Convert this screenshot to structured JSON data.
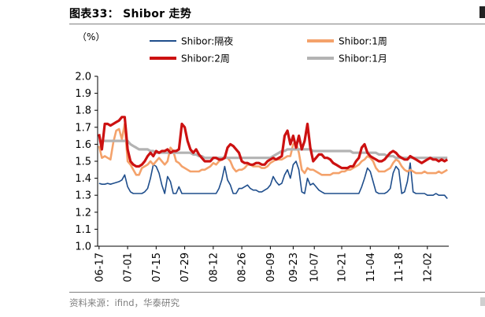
{
  "figure": {
    "title": "图表33： Shibor 走势",
    "source": "资料来源：ifind，华泰研究"
  },
  "colors": {
    "overnight": "#1f4e8c",
    "one_week": "#f4a26b",
    "two_week": "#cc1111",
    "one_month": "#b3b3b3"
  },
  "chart_data": {
    "type": "line",
    "unit_label": "（%）",
    "ylim": [
      1.0,
      2.0
    ],
    "yticks": [
      "2.0",
      "1.9",
      "1.8",
      "1.7",
      "1.6",
      "1.5",
      "1.4",
      "1.3",
      "1.2",
      "1.1",
      "1.0"
    ],
    "xticks": [
      "06-17",
      "07-01",
      "07-15",
      "07-29",
      "08-12",
      "08-26",
      "09-09",
      "09-23",
      "10-07",
      "10-21",
      "11-04",
      "11-18",
      "12-02"
    ],
    "legend_position": "top",
    "x": [
      "06-17",
      "06-18",
      "06-19",
      "06-20",
      "06-21",
      "06-24",
      "06-25",
      "06-26",
      "06-27",
      "06-28",
      "07-01",
      "07-02",
      "07-03",
      "07-04",
      "07-05",
      "07-08",
      "07-09",
      "07-10",
      "07-11",
      "07-12",
      "07-15",
      "07-16",
      "07-17",
      "07-18",
      "07-19",
      "07-22",
      "07-23",
      "07-24",
      "07-25",
      "07-26",
      "07-29",
      "07-30",
      "07-31",
      "08-01",
      "08-02",
      "08-05",
      "08-06",
      "08-07",
      "08-08",
      "08-09",
      "08-12",
      "08-13",
      "08-14",
      "08-15",
      "08-16",
      "08-19",
      "08-20",
      "08-21",
      "08-22",
      "08-23",
      "08-26",
      "08-27",
      "08-28",
      "08-29",
      "08-30",
      "09-02",
      "09-03",
      "09-04",
      "09-05",
      "09-06",
      "09-09",
      "09-10",
      "09-11",
      "09-12",
      "09-13",
      "09-18",
      "09-19",
      "09-20",
      "09-23",
      "09-24",
      "09-25",
      "09-26",
      "09-27",
      "09-29",
      "09-30",
      "10-08",
      "10-09",
      "10-10",
      "10-11",
      "10-12",
      "10-14",
      "10-15",
      "10-16",
      "10-17",
      "10-18",
      "10-21",
      "10-22",
      "10-23",
      "10-24",
      "10-25",
      "10-28",
      "10-29",
      "10-30",
      "10-31",
      "11-01",
      "11-04",
      "11-05",
      "11-06",
      "11-07",
      "11-08",
      "11-11",
      "11-12",
      "11-13",
      "11-14",
      "11-15",
      "11-18",
      "11-19",
      "11-20",
      "11-21",
      "11-22",
      "11-25",
      "11-26",
      "11-27",
      "11-28",
      "11-29",
      "12-02",
      "12-03",
      "12-04",
      "12-05",
      "12-06",
      "12-09",
      "12-10",
      "12-11"
    ],
    "series": [
      {
        "name": "Shibor:隔夜",
        "color_key": "overnight",
        "values": [
          1.37,
          1.365,
          1.365,
          1.37,
          1.365,
          1.37,
          1.375,
          1.38,
          1.39,
          1.42,
          1.35,
          1.32,
          1.31,
          1.31,
          1.31,
          1.31,
          1.32,
          1.34,
          1.4,
          1.48,
          1.47,
          1.43,
          1.36,
          1.31,
          1.41,
          1.38,
          1.31,
          1.31,
          1.35,
          1.31,
          1.31,
          1.31,
          1.31,
          1.31,
          1.31,
          1.31,
          1.31,
          1.31,
          1.31,
          1.31,
          1.31,
          1.31,
          1.34,
          1.39,
          1.47,
          1.39,
          1.36,
          1.31,
          1.31,
          1.34,
          1.34,
          1.35,
          1.36,
          1.34,
          1.33,
          1.33,
          1.32,
          1.32,
          1.33,
          1.34,
          1.36,
          1.41,
          1.38,
          1.36,
          1.37,
          1.42,
          1.45,
          1.4,
          1.48,
          1.5,
          1.45,
          1.32,
          1.31,
          1.4,
          1.36,
          1.37,
          1.35,
          1.33,
          1.32,
          1.31,
          1.31,
          1.31,
          1.31,
          1.31,
          1.31,
          1.31,
          1.31,
          1.31,
          1.31,
          1.31,
          1.31,
          1.31,
          1.35,
          1.4,
          1.46,
          1.44,
          1.38,
          1.32,
          1.31,
          1.31,
          1.31,
          1.32,
          1.34,
          1.43,
          1.47,
          1.45,
          1.31,
          1.32,
          1.38,
          1.49,
          1.32,
          1.31,
          1.31,
          1.31,
          1.31,
          1.3,
          1.3,
          1.3,
          1.31,
          1.3,
          1.3,
          1.3,
          1.28
        ]
      },
      {
        "name": "Shibor:1周",
        "color_key": "one_week",
        "values": [
          1.59,
          1.52,
          1.53,
          1.52,
          1.51,
          1.61,
          1.68,
          1.69,
          1.63,
          1.72,
          1.5,
          1.48,
          1.45,
          1.42,
          1.42,
          1.46,
          1.47,
          1.48,
          1.5,
          1.48,
          1.5,
          1.52,
          1.5,
          1.48,
          1.5,
          1.58,
          1.56,
          1.5,
          1.49,
          1.47,
          1.46,
          1.45,
          1.44,
          1.44,
          1.44,
          1.44,
          1.45,
          1.45,
          1.46,
          1.47,
          1.49,
          1.48,
          1.5,
          1.51,
          1.53,
          1.52,
          1.5,
          1.46,
          1.44,
          1.45,
          1.45,
          1.46,
          1.48,
          1.48,
          1.47,
          1.47,
          1.47,
          1.46,
          1.46,
          1.47,
          1.49,
          1.5,
          1.51,
          1.51,
          1.51,
          1.52,
          1.53,
          1.53,
          1.6,
          1.61,
          1.55,
          1.45,
          1.43,
          1.46,
          1.45,
          1.45,
          1.44,
          1.43,
          1.42,
          1.42,
          1.42,
          1.42,
          1.43,
          1.43,
          1.43,
          1.44,
          1.44,
          1.45,
          1.45,
          1.46,
          1.47,
          1.48,
          1.5,
          1.51,
          1.53,
          1.52,
          1.5,
          1.46,
          1.44,
          1.44,
          1.44,
          1.45,
          1.46,
          1.49,
          1.51,
          1.5,
          1.47,
          1.45,
          1.44,
          1.45,
          1.44,
          1.43,
          1.43,
          1.43,
          1.44,
          1.43,
          1.43,
          1.43,
          1.43,
          1.44,
          1.43,
          1.44,
          1.45
        ]
      },
      {
        "name": "Shibor:2周",
        "color_key": "two_week",
        "values": [
          1.66,
          1.57,
          1.72,
          1.72,
          1.71,
          1.72,
          1.73,
          1.74,
          1.76,
          1.76,
          1.57,
          1.5,
          1.48,
          1.47,
          1.47,
          1.48,
          1.5,
          1.53,
          1.55,
          1.53,
          1.56,
          1.55,
          1.56,
          1.56,
          1.57,
          1.55,
          1.56,
          1.56,
          1.57,
          1.72,
          1.7,
          1.62,
          1.57,
          1.55,
          1.57,
          1.54,
          1.52,
          1.5,
          1.5,
          1.5,
          1.52,
          1.52,
          1.51,
          1.51,
          1.52,
          1.58,
          1.6,
          1.59,
          1.57,
          1.55,
          1.5,
          1.49,
          1.49,
          1.48,
          1.48,
          1.49,
          1.49,
          1.48,
          1.48,
          1.5,
          1.51,
          1.52,
          1.51,
          1.52,
          1.53,
          1.65,
          1.68,
          1.6,
          1.65,
          1.58,
          1.65,
          1.57,
          1.62,
          1.72,
          1.58,
          1.5,
          1.52,
          1.54,
          1.54,
          1.52,
          1.52,
          1.51,
          1.49,
          1.48,
          1.47,
          1.46,
          1.46,
          1.46,
          1.47,
          1.47,
          1.5,
          1.52,
          1.58,
          1.6,
          1.55,
          1.53,
          1.52,
          1.51,
          1.5,
          1.5,
          1.51,
          1.53,
          1.55,
          1.56,
          1.55,
          1.53,
          1.52,
          1.51,
          1.51,
          1.53,
          1.52,
          1.51,
          1.5,
          1.49,
          1.5,
          1.51,
          1.52,
          1.51,
          1.51,
          1.5,
          1.51,
          1.5,
          1.51
        ]
      },
      {
        "name": "Shibor:1月",
        "color_key": "one_month",
        "values": [
          1.62,
          1.62,
          1.62,
          1.62,
          1.62,
          1.62,
          1.62,
          1.62,
          1.62,
          1.62,
          1.62,
          1.6,
          1.59,
          1.58,
          1.57,
          1.57,
          1.57,
          1.57,
          1.56,
          1.56,
          1.55,
          1.55,
          1.55,
          1.55,
          1.55,
          1.55,
          1.55,
          1.55,
          1.55,
          1.55,
          1.55,
          1.55,
          1.55,
          1.54,
          1.54,
          1.53,
          1.53,
          1.52,
          1.52,
          1.52,
          1.52,
          1.52,
          1.52,
          1.52,
          1.52,
          1.52,
          1.52,
          1.52,
          1.52,
          1.52,
          1.52,
          1.52,
          1.52,
          1.52,
          1.52,
          1.52,
          1.52,
          1.52,
          1.52,
          1.52,
          1.52,
          1.53,
          1.54,
          1.55,
          1.56,
          1.56,
          1.57,
          1.57,
          1.57,
          1.57,
          1.57,
          1.57,
          1.57,
          1.57,
          1.57,
          1.56,
          1.56,
          1.56,
          1.56,
          1.56,
          1.56,
          1.56,
          1.56,
          1.56,
          1.56,
          1.56,
          1.56,
          1.56,
          1.56,
          1.55,
          1.55,
          1.55,
          1.55,
          1.55,
          1.55,
          1.55,
          1.55,
          1.55,
          1.54,
          1.54,
          1.54,
          1.53,
          1.53,
          1.53,
          1.52,
          1.52,
          1.52,
          1.52,
          1.52,
          1.52,
          1.52,
          1.52,
          1.52,
          1.52,
          1.52,
          1.52,
          1.52,
          1.52,
          1.52,
          1.52,
          1.52,
          1.52,
          1.52
        ]
      }
    ]
  }
}
